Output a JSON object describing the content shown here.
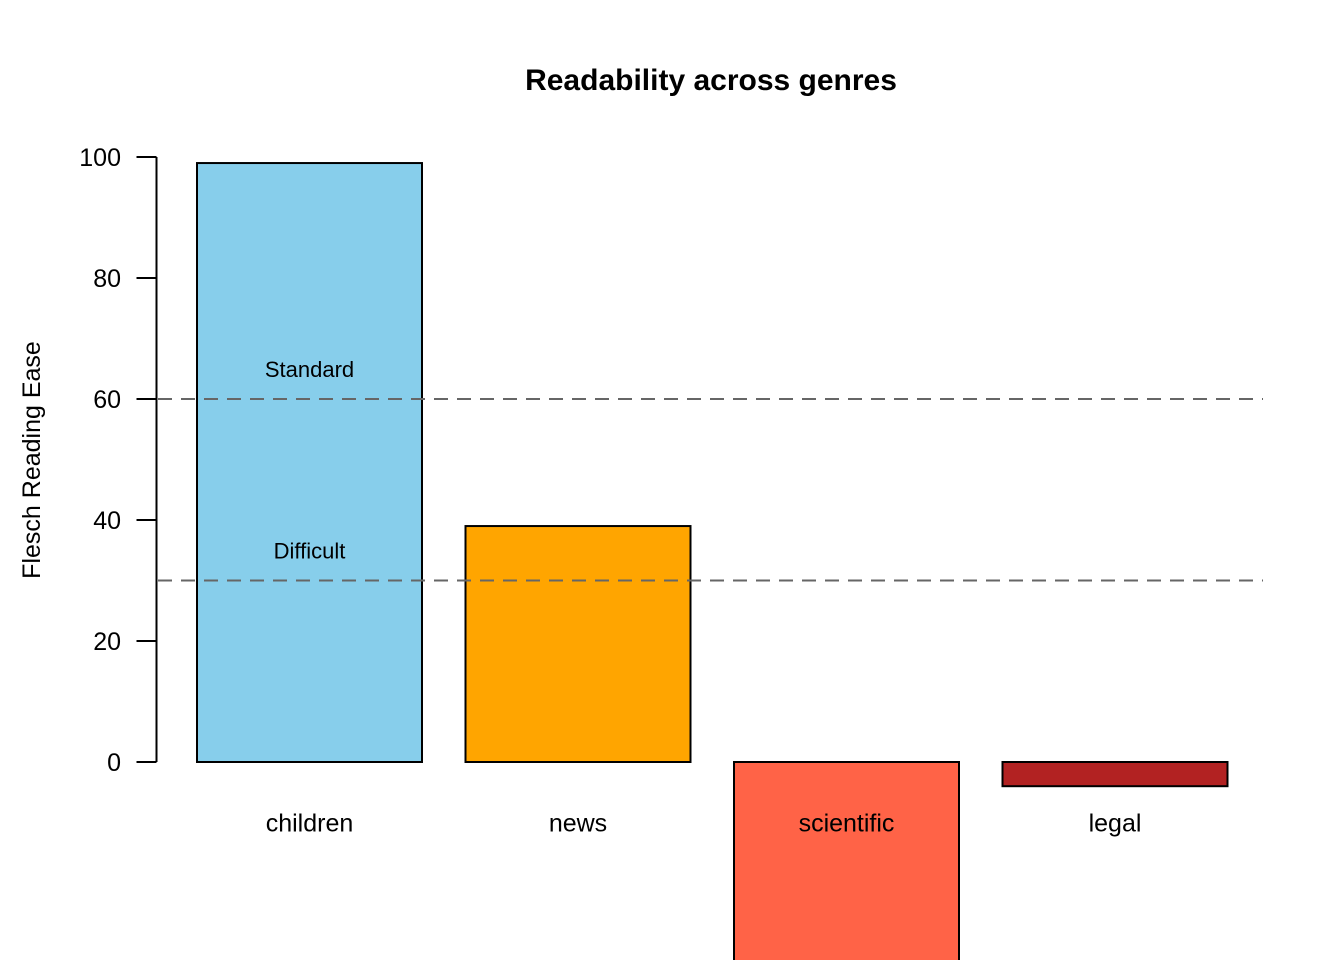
{
  "figure": {
    "background": "#ffffff"
  },
  "chart_data": {
    "type": "bar",
    "title": "Readability across genres",
    "xlabel": "",
    "ylabel": "Flesch Reading Ease",
    "categories": [
      "children",
      "news",
      "scientific",
      "legal"
    ],
    "values": [
      99,
      39,
      -33,
      -4
    ],
    "bar_colors": [
      "#87CEEB",
      "#FFA500",
      "#FF6347",
      "#B22222"
    ],
    "bar_border_color": "#000000",
    "yticks": [
      0,
      20,
      40,
      60,
      80,
      100
    ],
    "ylim": [
      0,
      100
    ],
    "grid": false,
    "legend": "none",
    "axis_color": "#000000",
    "clipped_bars": [
      "scientific"
    ],
    "reference_lines": [
      {
        "y": 60,
        "style": "dashed",
        "color": "#666666"
      },
      {
        "y": 30,
        "style": "dashed",
        "color": "#666666"
      }
    ],
    "annotations": [
      {
        "text": "Standard",
        "x_category": "children",
        "y": 65,
        "color": "#666666"
      },
      {
        "text": "Difficult",
        "x_category": "children",
        "y": 35,
        "color": "#666666"
      }
    ],
    "category_label_y_value": -10
  }
}
